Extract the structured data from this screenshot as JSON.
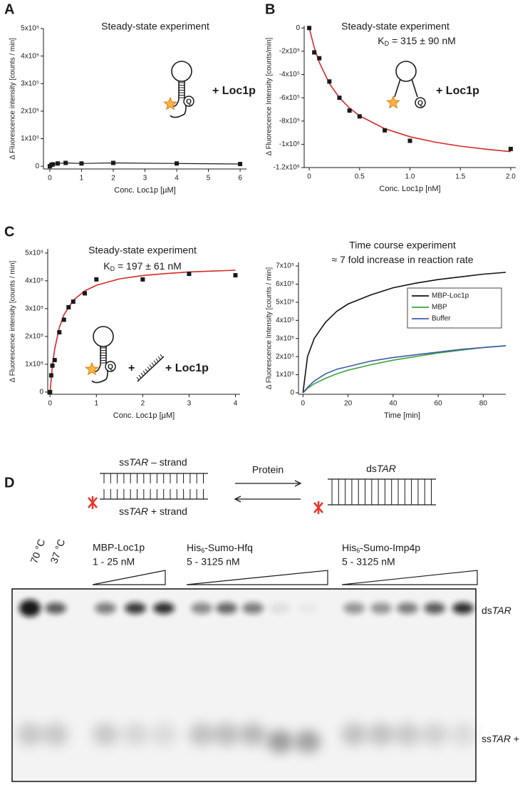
{
  "panels": [
    "A",
    "B",
    "C",
    "D"
  ],
  "chart_data": [
    {
      "type": "scatter",
      "title": "Steady-state experiment",
      "x_label": "Conc. Loc1p [µM]",
      "y_label": "Δ Fluorescence intensity [counts / min]",
      "x": [
        0,
        0.05,
        0.1,
        0.25,
        0.5,
        1,
        2,
        4,
        6
      ],
      "values": [
        0,
        5000,
        7000,
        10000,
        12000,
        10000,
        12000,
        10000,
        8000
      ],
      "color": "#1a1a1a",
      "connect": true,
      "annotations": [
        "+ Loc1p"
      ],
      "xlim": [
        -0.2,
        6.2
      ],
      "ylim": [
        -10000,
        500000
      ],
      "xticks": [
        0,
        1,
        2,
        3,
        4,
        5,
        6
      ],
      "yticks": [
        0,
        {
          "value": 100000,
          "label": "1x10⁵"
        },
        {
          "value": 200000,
          "label": "2x10⁵"
        },
        {
          "value": 300000,
          "label": "3x10⁵"
        },
        {
          "value": 400000,
          "label": "4x10⁵"
        },
        {
          "value": 500000,
          "label": "5x10⁵"
        }
      ]
    },
    {
      "type": "scatter",
      "title": "Steady-state experiment",
      "subtitle": [
        "K",
        "D",
        " = 315 ± 90 nM"
      ],
      "x_label": "Conc. Loc1p [nM]",
      "y_label": "Δ Fluorescence Intensity [counts/min]",
      "x": [
        0,
        0.05,
        0.1,
        0.2,
        0.3,
        0.4,
        0.5,
        0.75,
        1,
        2
      ],
      "values": [
        0,
        -210000,
        -260000,
        -460000,
        -600000,
        -710000,
        -760000,
        -880000,
        -970000,
        -1040000
      ],
      "color": "#1a1a1a",
      "connect": false,
      "annotations": [
        "+ Loc1p"
      ],
      "fit": {
        "x": [
          0,
          0.05,
          0.1,
          0.2,
          0.3,
          0.4,
          0.5,
          0.75,
          1,
          1.25,
          1.5,
          1.75,
          2
        ],
        "values": [
          0,
          -168000,
          -296000,
          -478000,
          -600000,
          -688000,
          -755000,
          -866000,
          -935000,
          -982000,
          -1016000,
          -1042000,
          -1063000
        ],
        "color": "#d42a2a"
      },
      "xlim": [
        -0.05,
        2.05
      ],
      "ylim": [
        -1200000,
        20000
      ],
      "xticks": [
        0,
        0.5,
        {
          "value": 1,
          "label": "1.0"
        },
        1.5,
        {
          "value": 2,
          "label": "2.0"
        }
      ],
      "yticks": [
        0,
        {
          "value": -200000,
          "label": "-2x10⁵"
        },
        {
          "value": -400000,
          "label": "-4x10⁵"
        },
        {
          "value": -600000,
          "label": "-6x10⁵"
        },
        {
          "value": -800000,
          "label": "-8x10⁵"
        },
        {
          "value": -1000000,
          "label": "-1x10⁶"
        },
        {
          "value": -1200000,
          "label": "-1.2x10⁶"
        }
      ]
    },
    {
      "type": "scatter",
      "title": "Steady-state experiment",
      "subtitle": [
        "K",
        "D",
        " = 197 ± 61 nM"
      ],
      "x_label": "Conc. Loc1p [µM]",
      "y_label": "Δ Fluorescence intensity [counts / min]",
      "x": [
        0,
        0.025,
        0.05,
        0.1,
        0.2,
        0.3,
        0.4,
        0.5,
        0.75,
        1,
        2,
        3,
        4
      ],
      "values": [
        0,
        60000,
        95000,
        115000,
        215000,
        260000,
        305000,
        325000,
        355000,
        405000,
        405000,
        425000,
        420000
      ],
      "color": "#1a1a1a",
      "connect": false,
      "annotations": [
        "+",
        "+ Loc1p"
      ],
      "fit": {
        "x": [
          0,
          0.05,
          0.1,
          0.2,
          0.3,
          0.5,
          0.75,
          1,
          1.5,
          2,
          2.5,
          3,
          3.5,
          4
        ],
        "values": [
          0,
          93000,
          155000,
          232000,
          278000,
          330000,
          364000,
          384000,
          407000,
          419000,
          426000,
          432000,
          435000,
          438000
        ],
        "color": "#d42a2a"
      },
      "xlim": [
        -0.05,
        4.1
      ],
      "ylim": [
        -8000,
        515000
      ],
      "xticks": [
        0,
        1,
        2,
        3,
        4
      ],
      "yticks": [
        0,
        {
          "value": 100000,
          "label": "1x10⁵"
        },
        {
          "value": 200000,
          "label": "2x10⁵"
        },
        {
          "value": 300000,
          "label": "3x10⁵"
        },
        {
          "value": 400000,
          "label": "4x10⁵"
        },
        {
          "value": 500000,
          "label": "5x10⁵"
        }
      ]
    },
    {
      "type": "line",
      "title": "Time course experiment",
      "subtitle": [
        "≈ 7 fold increase in reaction rate"
      ],
      "x_label": "Time [min]",
      "y_label": "Δ Fluorescence Intensity [counts / min]",
      "x": [
        0,
        2,
        5,
        10,
        15,
        20,
        30,
        40,
        50,
        60,
        70,
        80,
        90
      ],
      "series": [
        {
          "name": "MBP-Loc1p",
          "color": "#111111",
          "values": [
            0,
            200000,
            300000,
            390000,
            450000,
            490000,
            540000,
            580000,
            605000,
            625000,
            640000,
            655000,
            665000
          ]
        },
        {
          "name": "MBP",
          "color": "#3aa53a",
          "values": [
            0,
            25000,
            50000,
            80000,
            105000,
            125000,
            155000,
            180000,
            200000,
            220000,
            235000,
            250000,
            260000
          ]
        },
        {
          "name": "Buffer",
          "color": "#3f5aa8",
          "values": [
            0,
            30000,
            65000,
            105000,
            130000,
            145000,
            175000,
            195000,
            210000,
            225000,
            240000,
            250000,
            260000
          ]
        }
      ],
      "legend": "upper right",
      "xlim": [
        -2,
        90
      ],
      "ylim": [
        -8000,
        720000
      ],
      "xticks": [
        0,
        20,
        40,
        60,
        80
      ],
      "yticks": [
        0,
        {
          "value": 100000,
          "label": "1x10⁵"
        },
        {
          "value": 200000,
          "label": "2x10⁵"
        },
        {
          "value": 300000,
          "label": "3x10⁵"
        },
        {
          "value": 400000,
          "label": "4x10⁵"
        },
        {
          "value": 500000,
          "label": "5x10⁵"
        },
        {
          "value": 600000,
          "label": "6x10⁵"
        },
        {
          "value": 700000,
          "label": "7x10⁵"
        }
      ]
    }
  ],
  "diagram": {
    "minus_strand": [
      "ss",
      "TAR",
      " – strand"
    ],
    "plus_strand": [
      "ss",
      "TAR",
      " + strand"
    ],
    "arrow": "Protein",
    "duplex": [
      "ds",
      "TAR"
    ]
  },
  "gel": {
    "temperatures": [
      "70 °C",
      "37 °C"
    ],
    "groups": [
      {
        "name": [
          "MBP-Loc1p"
        ],
        "range": "1 - 25 nM"
      },
      {
        "name": [
          "His",
          "6",
          "-Sumo-Hfq"
        ],
        "range": "5 - 3125 nM"
      },
      {
        "name": [
          "His",
          "6",
          "-Sumo-Imp4p"
        ],
        "range": "5 - 3125 nM"
      }
    ],
    "band_labels": [
      [
        "ds",
        "TAR"
      ],
      [
        "ss",
        "TAR",
        " +"
      ]
    ]
  }
}
